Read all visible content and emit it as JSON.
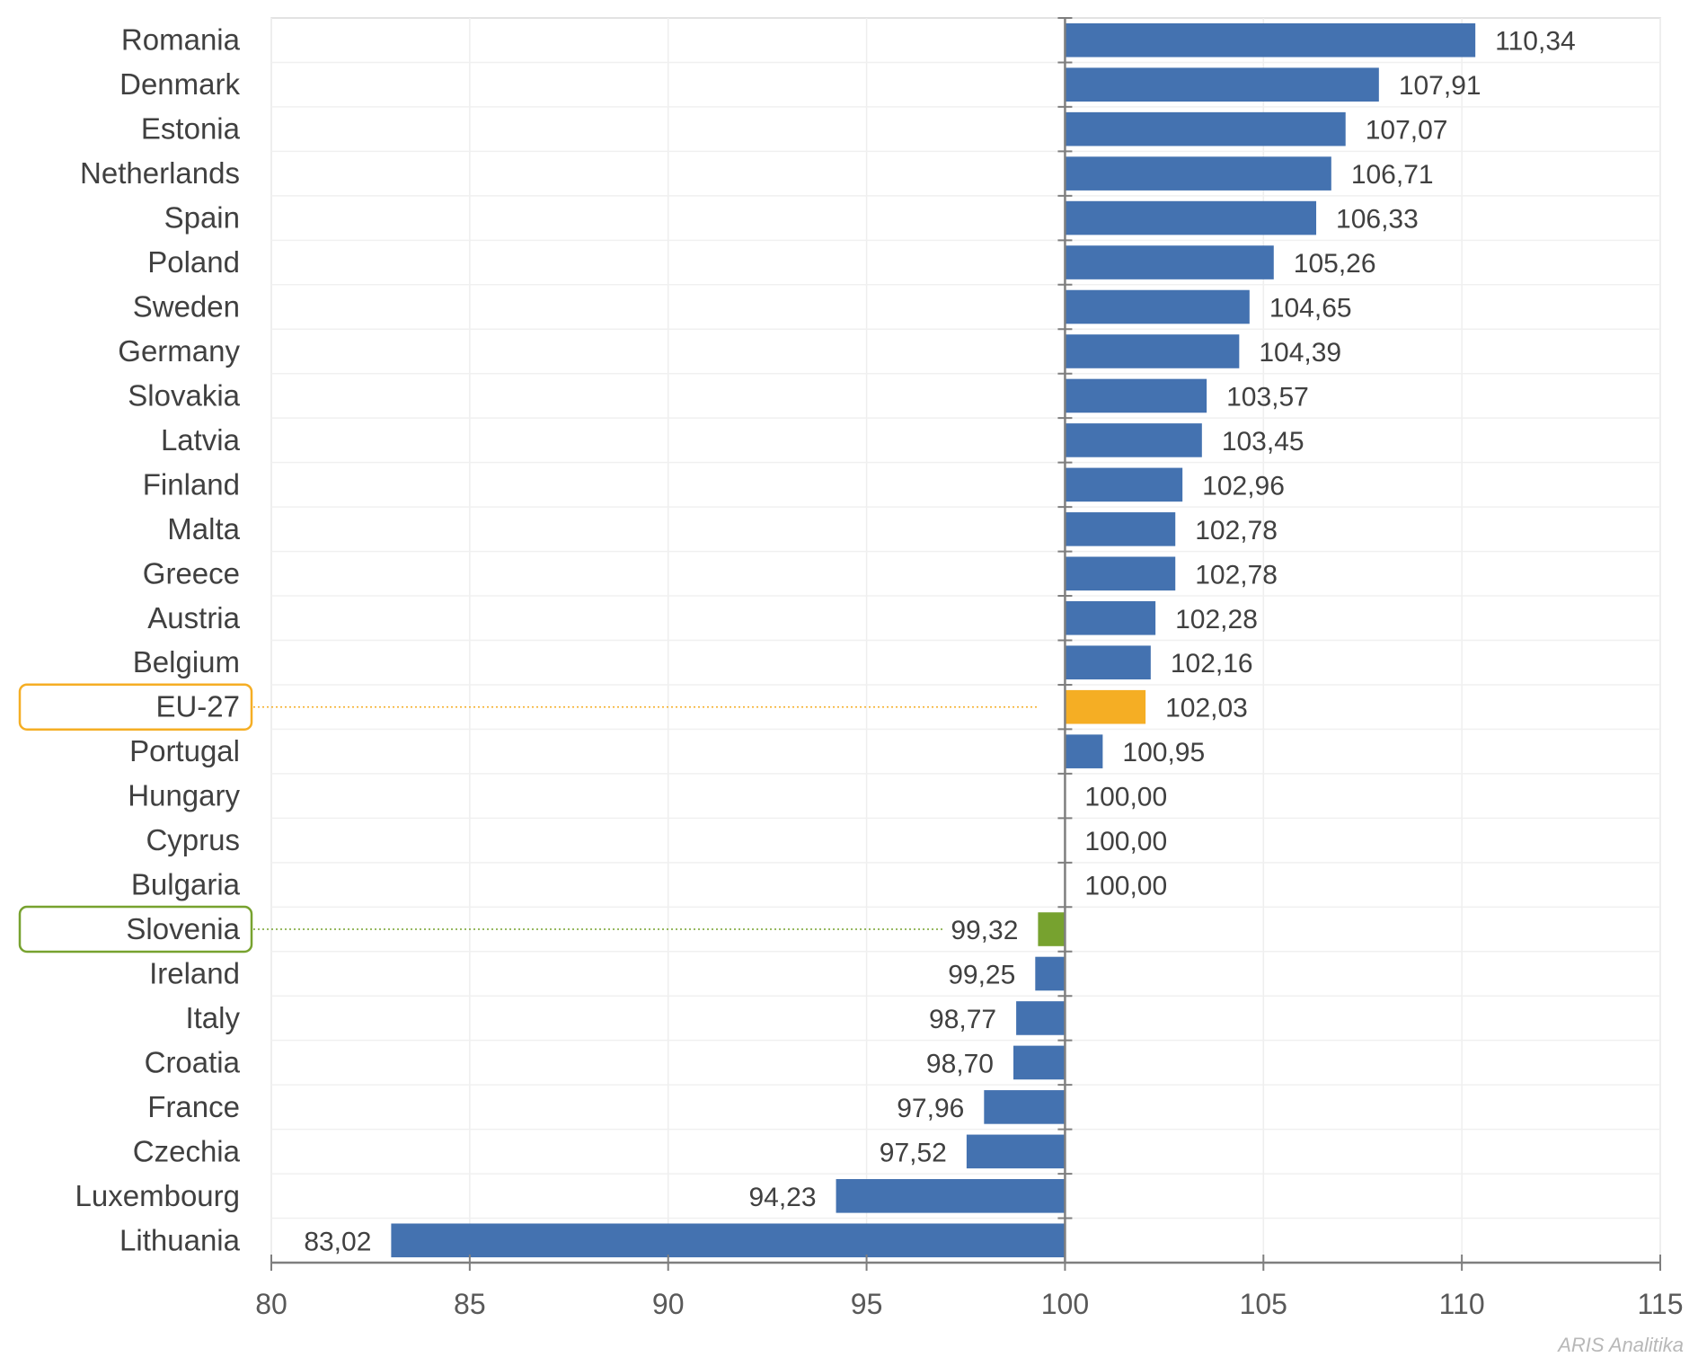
{
  "chart_data": {
    "type": "bar",
    "orientation": "horizontal",
    "baseline": 100,
    "xlim": [
      80,
      115
    ],
    "xticks": [
      80,
      85,
      90,
      95,
      100,
      105,
      110,
      115
    ],
    "grid": true,
    "categories": [
      "Romania",
      "Denmark",
      "Estonia",
      "Netherlands",
      "Spain",
      "Poland",
      "Sweden",
      "Germany",
      "Slovakia",
      "Latvia",
      "Finland",
      "Malta",
      "Greece",
      "Austria",
      "Belgium",
      "EU-27",
      "Portugal",
      "Hungary",
      "Cyprus",
      "Bulgaria",
      "Slovenia",
      "Ireland",
      "Italy",
      "Croatia",
      "France",
      "Czechia",
      "Luxembourg",
      "Lithuania"
    ],
    "values": [
      110.34,
      107.91,
      107.07,
      106.71,
      106.33,
      105.26,
      104.65,
      104.39,
      103.57,
      103.45,
      102.96,
      102.78,
      102.78,
      102.28,
      102.16,
      102.03,
      100.95,
      100.0,
      100.0,
      100.0,
      99.32,
      99.25,
      98.77,
      98.7,
      97.96,
      97.52,
      94.23,
      83.02
    ],
    "value_labels": [
      "110,34",
      "107,91",
      "107,07",
      "106,71",
      "106,33",
      "105,26",
      "104,65",
      "104,39",
      "103,57",
      "103,45",
      "102,96",
      "102,78",
      "102,78",
      "102,28",
      "102,16",
      "102,03",
      "100,95",
      "100,00",
      "100,00",
      "100,00",
      "99,32",
      "99,25",
      "98,77",
      "98,70",
      "97,96",
      "97,52",
      "94,23",
      "83,02"
    ],
    "colors": {
      "default": "#4472b0",
      "EU-27": "#f5ae24",
      "Slovenia": "#77a22f"
    },
    "highlighted": [
      "EU-27",
      "Slovenia"
    ]
  },
  "source": "ARIS Analitika"
}
